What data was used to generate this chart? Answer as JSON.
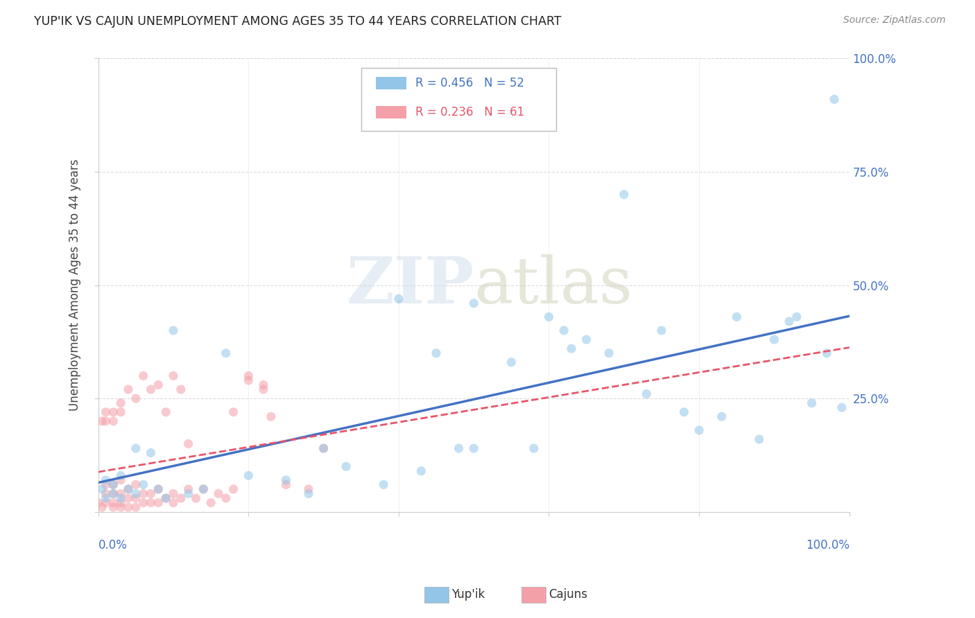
{
  "title": "YUP'IK VS CAJUN UNEMPLOYMENT AMONG AGES 35 TO 44 YEARS CORRELATION CHART",
  "source": "Source: ZipAtlas.com",
  "ylabel": "Unemployment Among Ages 35 to 44 years",
  "watermark_line1": "ZIP",
  "watermark_line2": "atlas",
  "legend_entries": [
    {
      "label": "Yup'ik",
      "R": "0.456",
      "N": "52",
      "color": "#92C5E8",
      "text_color": "#4472C4"
    },
    {
      "label": "Cajuns",
      "R": "0.236",
      "N": "61",
      "color": "#F4A0A8",
      "text_color": "#E8556A"
    }
  ],
  "yupik_scatter_x": [
    0.005,
    0.01,
    0.01,
    0.02,
    0.02,
    0.03,
    0.03,
    0.04,
    0.05,
    0.05,
    0.06,
    0.07,
    0.08,
    0.09,
    0.1,
    0.12,
    0.14,
    0.17,
    0.2,
    0.25,
    0.28,
    0.3,
    0.33,
    0.38,
    0.4,
    0.43,
    0.48,
    0.5,
    0.55,
    0.6,
    0.62,
    0.65,
    0.68,
    0.7,
    0.73,
    0.75,
    0.78,
    0.8,
    0.83,
    0.85,
    0.88,
    0.9,
    0.92,
    0.93,
    0.95,
    0.97,
    0.98,
    0.99,
    0.5,
    0.58,
    0.45,
    0.63
  ],
  "yupik_scatter_y": [
    0.05,
    0.03,
    0.07,
    0.04,
    0.06,
    0.03,
    0.08,
    0.05,
    0.04,
    0.14,
    0.06,
    0.13,
    0.05,
    0.03,
    0.4,
    0.04,
    0.05,
    0.35,
    0.08,
    0.07,
    0.04,
    0.14,
    0.1,
    0.06,
    0.47,
    0.09,
    0.14,
    0.46,
    0.33,
    0.43,
    0.4,
    0.38,
    0.35,
    0.7,
    0.26,
    0.4,
    0.22,
    0.18,
    0.21,
    0.43,
    0.16,
    0.38,
    0.42,
    0.43,
    0.24,
    0.35,
    0.91,
    0.23,
    0.14,
    0.14,
    0.35,
    0.36
  ],
  "cajun_scatter_x": [
    0.0,
    0.005,
    0.01,
    0.01,
    0.01,
    0.02,
    0.02,
    0.02,
    0.02,
    0.03,
    0.03,
    0.03,
    0.03,
    0.04,
    0.04,
    0.04,
    0.05,
    0.05,
    0.05,
    0.06,
    0.06,
    0.07,
    0.07,
    0.08,
    0.08,
    0.09,
    0.1,
    0.1,
    0.11,
    0.12,
    0.12,
    0.13,
    0.14,
    0.15,
    0.16,
    0.17,
    0.18,
    0.2,
    0.22,
    0.23,
    0.25,
    0.28,
    0.3,
    0.18,
    0.2,
    0.22,
    0.08,
    0.09,
    0.1,
    0.11,
    0.06,
    0.07,
    0.04,
    0.05,
    0.03,
    0.03,
    0.02,
    0.02,
    0.01,
    0.01,
    0.005
  ],
  "cajun_scatter_y": [
    0.02,
    0.01,
    0.02,
    0.04,
    0.06,
    0.01,
    0.02,
    0.04,
    0.06,
    0.01,
    0.02,
    0.04,
    0.07,
    0.01,
    0.03,
    0.05,
    0.01,
    0.03,
    0.06,
    0.02,
    0.04,
    0.02,
    0.04,
    0.02,
    0.05,
    0.03,
    0.02,
    0.04,
    0.03,
    0.05,
    0.15,
    0.03,
    0.05,
    0.02,
    0.04,
    0.03,
    0.05,
    0.3,
    0.28,
    0.21,
    0.06,
    0.05,
    0.14,
    0.22,
    0.29,
    0.27,
    0.28,
    0.22,
    0.3,
    0.27,
    0.3,
    0.27,
    0.27,
    0.25,
    0.22,
    0.24,
    0.2,
    0.22,
    0.2,
    0.22,
    0.2
  ],
  "yupik_color": "#92C5E8",
  "cajun_color": "#F4A0A8",
  "yupik_line_color": "#4472C4",
  "cajun_line_color": "#E8556A",
  "background_color": "#FFFFFF",
  "grid_color": "#CCCCCC",
  "title_color": "#222222",
  "axis_label_color": "#4472C4",
  "marker_size": 90,
  "marker_alpha": 0.55,
  "xlim": [
    0.0,
    1.0
  ],
  "ylim": [
    0.0,
    1.0
  ]
}
